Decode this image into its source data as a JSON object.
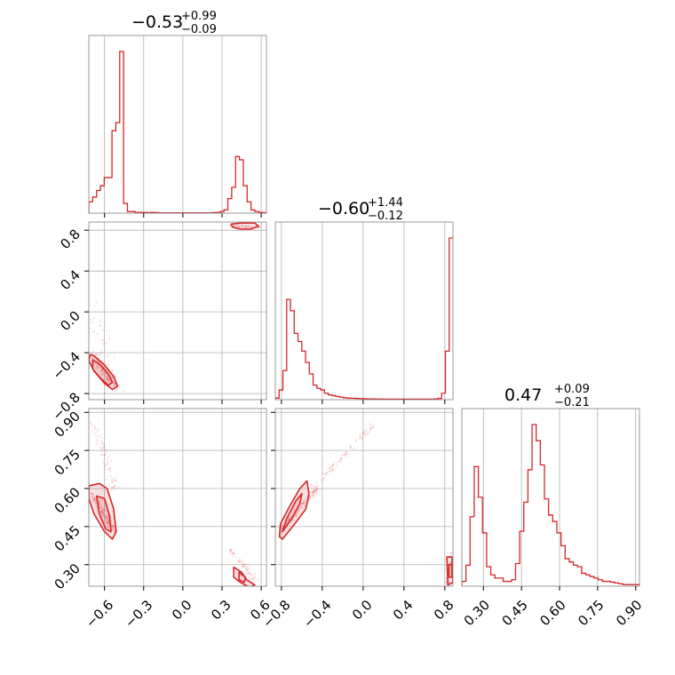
{
  "chart_data": {
    "type": "corner",
    "color": "#d62728",
    "grid": true,
    "titles": [
      {
        "value": "−0.53",
        "plus": "+0.99",
        "minus": "−0.09"
      },
      {
        "value": "−0.60",
        "plus": "+1.44",
        "minus": "−0.12"
      },
      {
        "value": "0.47",
        "plus": "+0.09",
        "minus": "−0.21"
      }
    ],
    "params": [
      {
        "range": [
          -0.72,
          0.64
        ],
        "ticks": [
          -0.6,
          -0.3,
          0.0,
          0.3,
          0.6
        ],
        "tick_labels": [
          "−0.6",
          "−0.3",
          "0.0",
          "0.3",
          "0.6"
        ]
      },
      {
        "range": [
          -0.86,
          0.88
        ],
        "ticks": [
          -0.8,
          -0.4,
          0.0,
          0.4,
          0.8
        ],
        "tick_labels": [
          "−0.8",
          "−0.4",
          "0.0",
          "0.4",
          "0.8"
        ]
      },
      {
        "range": [
          0.215,
          0.915
        ],
        "ticks": [
          0.3,
          0.45,
          0.6,
          0.75,
          0.9
        ],
        "tick_labels": [
          "0.30",
          "0.45",
          "0.60",
          "0.75",
          "0.90"
        ]
      }
    ],
    "histograms": [
      {
        "bin_start": -0.72,
        "bin_end": 0.64,
        "counts": [
          0.07,
          0.1,
          0.14,
          0.17,
          0.22,
          0.22,
          0.51,
          0.56,
          1.0,
          0.06,
          0.01,
          0.01,
          0.005,
          0.005,
          0.005,
          0.003,
          0.005,
          0.003,
          0.002,
          0.002,
          0.002,
          0.002,
          0.002,
          0.002,
          0.002,
          0.002,
          0.002,
          0.002,
          0.002,
          0.002,
          0.002,
          0.002,
          0.003,
          0.005,
          0.01,
          0.02,
          0.09,
          0.16,
          0.35,
          0.33,
          0.17,
          0.07,
          0.02,
          0.01,
          0.005,
          0.003
        ]
      },
      {
        "bin_start": -0.86,
        "bin_end": 0.88,
        "counts": [
          0.01,
          0.06,
          0.18,
          0.62,
          0.55,
          0.41,
          0.36,
          0.3,
          0.23,
          0.16,
          0.09,
          0.07,
          0.06,
          0.04,
          0.03,
          0.025,
          0.02,
          0.015,
          0.012,
          0.01,
          0.009,
          0.008,
          0.007,
          0.006,
          0.005,
          0.005,
          0.004,
          0.004,
          0.003,
          0.003,
          0.003,
          0.003,
          0.003,
          0.003,
          0.003,
          0.003,
          0.003,
          0.003,
          0.003,
          0.003,
          0.003,
          0.003,
          0.005,
          0.008,
          0.04,
          0.3,
          1.0
        ]
      },
      {
        "bin_start": 0.215,
        "bin_end": 0.915,
        "counts": [
          0.03,
          0.13,
          0.43,
          0.74,
          0.55,
          0.33,
          0.12,
          0.07,
          0.05,
          0.05,
          0.03,
          0.03,
          0.04,
          0.14,
          0.34,
          0.52,
          0.72,
          1.0,
          0.9,
          0.75,
          0.54,
          0.44,
          0.4,
          0.33,
          0.25,
          0.17,
          0.15,
          0.13,
          0.12,
          0.08,
          0.07,
          0.06,
          0.05,
          0.04,
          0.03,
          0.03,
          0.025,
          0.02,
          0.015,
          0.01,
          0.01,
          0.01,
          0.01
        ]
      }
    ],
    "scatter_2d": [
      {
        "x_param": 0,
        "y_param": 1,
        "clusters": [
          {
            "x_start": -0.7,
            "x_end": -0.52,
            "y_start": -0.4,
            "y_end": -0.72,
            "spread": 0.08,
            "count": 140
          },
          {
            "x_start": -0.7,
            "x_end": -0.5,
            "y_start": 0.0,
            "y_end": -0.8,
            "spread": 0.2,
            "count": 60
          },
          {
            "x_start": 0.36,
            "x_end": 0.6,
            "y_start": 0.84,
            "y_end": 0.83,
            "spread": 0.02,
            "count": 40
          }
        ],
        "contours": [
          [
            [
              -0.71,
              -0.42
            ],
            [
              -0.68,
              -0.43
            ],
            [
              -0.6,
              -0.52
            ],
            [
              -0.53,
              -0.63
            ],
            [
              -0.5,
              -0.73
            ],
            [
              -0.54,
              -0.76
            ],
            [
              -0.6,
              -0.7
            ],
            [
              -0.68,
              -0.58
            ],
            [
              -0.72,
              -0.48
            ]
          ],
          [
            [
              -0.69,
              -0.47
            ],
            [
              -0.63,
              -0.52
            ],
            [
              -0.57,
              -0.61
            ],
            [
              -0.54,
              -0.69
            ],
            [
              -0.57,
              -0.72
            ],
            [
              -0.63,
              -0.65
            ],
            [
              -0.69,
              -0.56
            ]
          ],
          [
            [
              0.37,
              0.86
            ],
            [
              0.45,
              0.87
            ],
            [
              0.55,
              0.87
            ],
            [
              0.58,
              0.84
            ],
            [
              0.52,
              0.81
            ],
            [
              0.44,
              0.81
            ],
            [
              0.38,
              0.83
            ]
          ]
        ]
      },
      {
        "x_param": 0,
        "y_param": 2,
        "clusters": [
          {
            "x_start": -0.7,
            "x_end": -0.52,
            "y_start": 0.58,
            "y_end": 0.43,
            "spread": 0.05,
            "count": 140
          },
          {
            "x_start": -0.68,
            "x_end": -0.52,
            "y_start": 0.85,
            "y_end": 0.6,
            "spread": 0.08,
            "count": 70
          },
          {
            "x_start": 0.36,
            "x_end": 0.55,
            "y_start": 0.36,
            "y_end": 0.24,
            "spread": 0.06,
            "count": 60
          }
        ],
        "contours": [
          [
            [
              -0.72,
              0.61
            ],
            [
              -0.64,
              0.62
            ],
            [
              -0.58,
              0.6
            ],
            [
              -0.53,
              0.52
            ],
            [
              -0.51,
              0.43
            ],
            [
              -0.54,
              0.4
            ],
            [
              -0.6,
              0.43
            ],
            [
              -0.68,
              0.5
            ],
            [
              -0.72,
              0.56
            ]
          ],
          [
            [
              -0.66,
              0.57
            ],
            [
              -0.6,
              0.56
            ],
            [
              -0.56,
              0.49
            ],
            [
              -0.55,
              0.43
            ],
            [
              -0.59,
              0.44
            ],
            [
              -0.64,
              0.5
            ]
          ],
          [
            [
              0.39,
              0.29
            ],
            [
              0.45,
              0.27
            ],
            [
              0.49,
              0.24
            ],
            [
              0.55,
              0.22
            ],
            [
              0.51,
              0.21
            ],
            [
              0.44,
              0.23
            ],
            [
              0.39,
              0.25
            ]
          ],
          [
            [
              0.43,
              0.27
            ],
            [
              0.48,
              0.25
            ],
            [
              0.47,
              0.23
            ],
            [
              0.43,
              0.24
            ]
          ]
        ]
      },
      {
        "x_param": 1,
        "y_param": 2,
        "clusters": [
          {
            "x_start": -0.82,
            "x_end": -0.45,
            "y_start": 0.43,
            "y_end": 0.6,
            "spread": 0.05,
            "count": 150
          },
          {
            "x_start": -0.5,
            "x_end": 0.1,
            "y_start": 0.6,
            "y_end": 0.85,
            "spread": 0.06,
            "count": 90
          },
          {
            "x_start": 0.82,
            "x_end": 0.87,
            "y_start": 0.22,
            "y_end": 0.35,
            "spread": 0.05,
            "count": 40
          }
        ],
        "contours": [
          [
            [
              -0.82,
              0.41
            ],
            [
              -0.79,
              0.4
            ],
            [
              -0.67,
              0.46
            ],
            [
              -0.56,
              0.52
            ],
            [
              -0.53,
              0.58
            ],
            [
              -0.55,
              0.63
            ],
            [
              -0.62,
              0.6
            ],
            [
              -0.72,
              0.53
            ],
            [
              -0.81,
              0.46
            ]
          ],
          [
            [
              -0.79,
              0.43
            ],
            [
              -0.7,
              0.48
            ],
            [
              -0.62,
              0.54
            ],
            [
              -0.6,
              0.58
            ],
            [
              -0.66,
              0.55
            ],
            [
              -0.75,
              0.48
            ]
          ],
          [
            [
              0.82,
              0.33
            ],
            [
              0.87,
              0.33
            ],
            [
              0.88,
              0.23
            ],
            [
              0.83,
              0.22
            ]
          ],
          [
            [
              0.84,
              0.3
            ],
            [
              0.87,
              0.3
            ],
            [
              0.87,
              0.25
            ],
            [
              0.84,
              0.25
            ]
          ]
        ]
      }
    ]
  }
}
